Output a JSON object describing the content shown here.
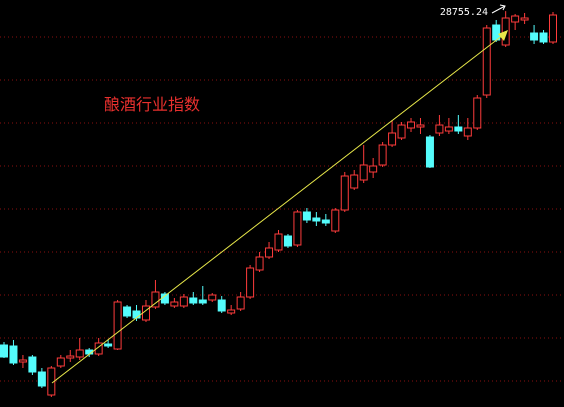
{
  "chart_data": {
    "type": "candlestick",
    "title": "酿酒行业指数",
    "ylim": [
      12920,
      29200
    ],
    "up_color": "#ff3c3c",
    "down_color": "#54fcfc",
    "open": [
      15400,
      15360,
      14720,
      14920,
      14320,
      13400,
      14560,
      14880,
      14920,
      15200,
      15040,
      15440,
      15240,
      16920,
      16760,
      16400,
      16920,
      17440,
      16960,
      16960,
      17280,
      17200,
      17200,
      17200,
      16680,
      16840,
      17320,
      18400,
      18920,
      19200,
      19760,
      19400,
      20720,
      20480,
      20400,
      19960,
      20800,
      21680,
      22000,
      22320,
      22600,
      23400,
      23680,
      24080,
      24120,
      23720,
      23880,
      23960,
      24120,
      23760,
      24080,
      25400,
      28200,
      27400,
      28320,
      28400,
      27880,
      27880,
      27520
    ],
    "high": [
      15520,
      15600,
      15000,
      15000,
      14480,
      14560,
      15000,
      15200,
      15680,
      15280,
      15680,
      15600,
      17200,
      17000,
      17000,
      17200,
      18000,
      17520,
      17280,
      17440,
      17520,
      17760,
      17480,
      17360,
      17000,
      17520,
      18600,
      19120,
      19520,
      20000,
      19840,
      20800,
      20880,
      20720,
      20640,
      20880,
      22320,
      22400,
      23400,
      22880,
      23520,
      24400,
      24320,
      24480,
      24480,
      23800,
      24600,
      24480,
      24600,
      24480,
      25400,
      28200,
      28400,
      28755.24,
      28640,
      28680,
      28200,
      28000,
      28720
    ],
    "low": [
      14880,
      14600,
      14480,
      14200,
      13680,
      13320,
      14480,
      14720,
      14800,
      14920,
      14960,
      15280,
      15200,
      16480,
      16360,
      16320,
      16840,
      17000,
      16880,
      16880,
      17000,
      17000,
      17120,
      16680,
      16600,
      16760,
      17240,
      18320,
      18840,
      19120,
      19280,
      19320,
      20280,
      20160,
      20160,
      19880,
      20720,
      21600,
      21880,
      22080,
      22520,
      23320,
      23600,
      23920,
      23840,
      22480,
      23760,
      23840,
      23840,
      23600,
      24000,
      25280,
      27520,
      27320,
      28000,
      28240,
      27440,
      27440,
      27440
    ],
    "close": [
      14920,
      14680,
      14800,
      14320,
      13760,
      14480,
      14880,
      14960,
      15200,
      15040,
      15480,
      15360,
      17120,
      16560,
      16480,
      16960,
      17520,
      17080,
      17120,
      17320,
      17080,
      17080,
      17400,
      16760,
      16800,
      17320,
      18480,
      18920,
      19280,
      19840,
      19360,
      20720,
      20400,
      20360,
      20280,
      20800,
      22160,
      22200,
      22600,
      22560,
      23400,
      23880,
      24200,
      24320,
      24200,
      22520,
      24200,
      24120,
      23960,
      24080,
      25280,
      28080,
      27600,
      28480,
      28560,
      28480,
      27600,
      27520,
      28600
    ]
  }
}
